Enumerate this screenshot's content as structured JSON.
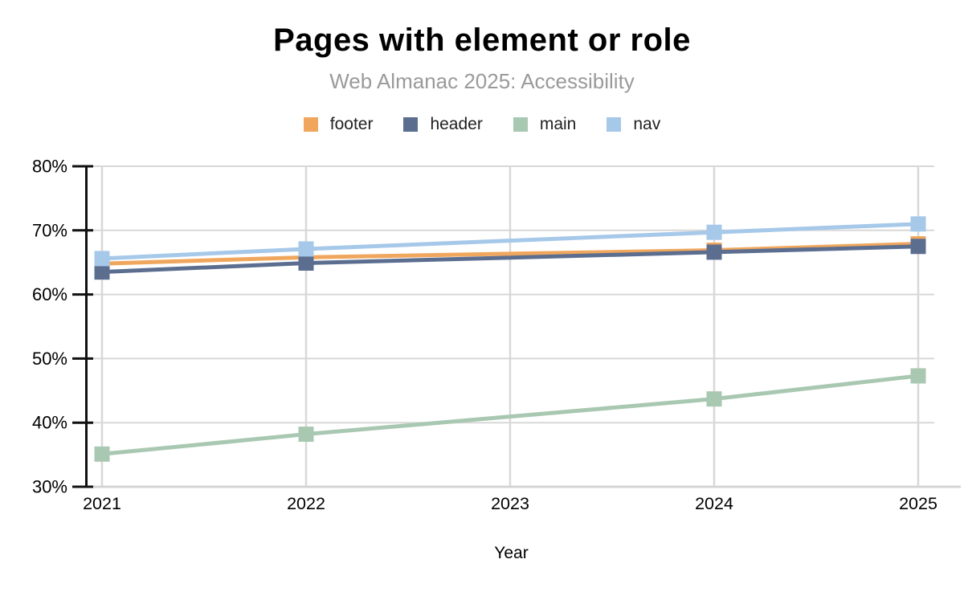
{
  "header": {
    "title": "Pages with element or role",
    "subtitle": "Web Almanac 2025: Accessibility"
  },
  "legend": {
    "items": [
      {
        "label": "footer"
      },
      {
        "label": "header"
      },
      {
        "label": "main"
      },
      {
        "label": "nav"
      }
    ]
  },
  "chart_data": {
    "type": "line",
    "title": "Pages with element or role",
    "subtitle": "Web Almanac 2025: Accessibility",
    "xlabel": "Year",
    "ylabel": "",
    "xlim": [
      2021,
      2025
    ],
    "ylim": [
      30,
      80
    ],
    "x_ticks": [
      2021,
      2022,
      2023,
      2024,
      2025
    ],
    "y_ticks": [
      30,
      40,
      50,
      60,
      70,
      80
    ],
    "y_tick_suffix": "%",
    "grid": true,
    "legend_position": "top",
    "marker": "square",
    "series": [
      {
        "name": "footer",
        "color": "#F0A75D",
        "x": [
          2021,
          2022,
          2024,
          2025
        ],
        "values": [
          64.8,
          65.8,
          66.9,
          67.9
        ]
      },
      {
        "name": "header",
        "color": "#5C6E90",
        "x": [
          2021,
          2022,
          2024,
          2025
        ],
        "values": [
          63.5,
          64.9,
          66.6,
          67.5
        ]
      },
      {
        "name": "main",
        "color": "#A9C8B2",
        "x": [
          2021,
          2022,
          2024,
          2025
        ],
        "values": [
          35.1,
          38.2,
          43.7,
          47.3
        ]
      },
      {
        "name": "nav",
        "color": "#A6C8E9",
        "x": [
          2021,
          2022,
          2024,
          2025
        ],
        "values": [
          65.6,
          67.1,
          69.7,
          71.0
        ]
      }
    ],
    "colors": {
      "grid": "#D8D8D8",
      "baseline": "#D4D4D4",
      "axis": "#111111",
      "tick_text": "#000000",
      "subtitle_text": "#9A9A9A"
    }
  }
}
